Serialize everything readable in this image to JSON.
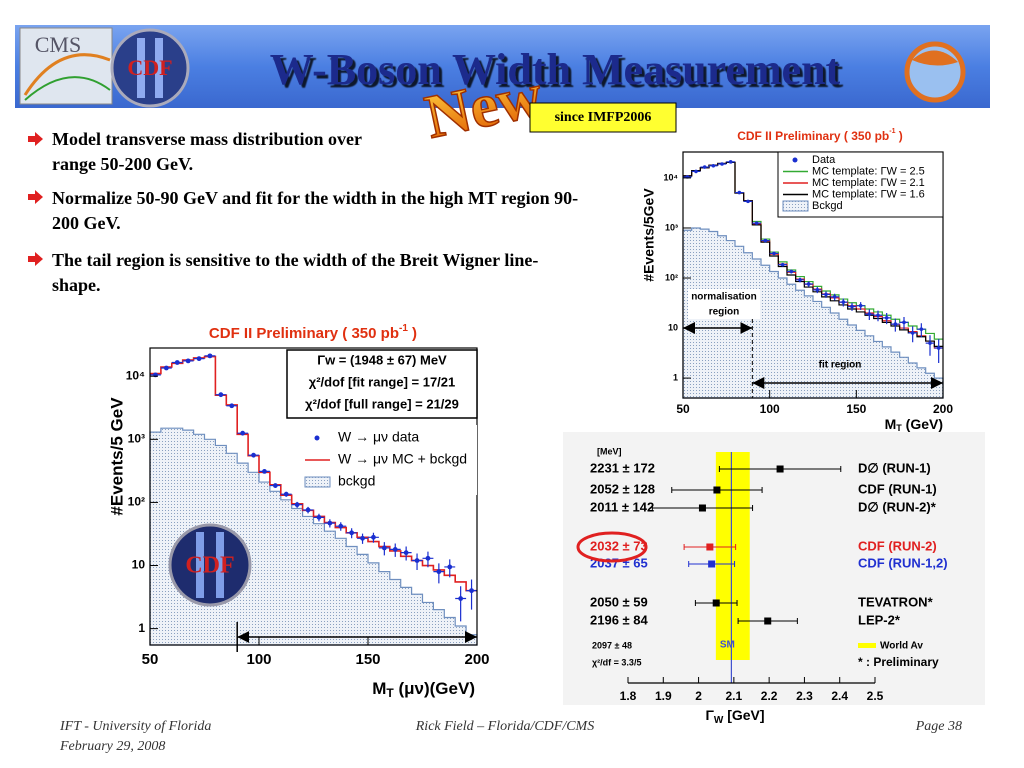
{
  "header": {
    "title": "W-Boson Width Measurement"
  },
  "logos": {
    "cms": "CMS",
    "cdf": "CDF"
  },
  "badge": {
    "new": "New",
    "since": "since IMFP2006"
  },
  "bullets": [
    "Model transverse mass distribution over range 50-200 GeV.",
    "Normalize 50-90 GeV and fit for the width in the high MT region 90-200 GeV.",
    "The tail region is sensitive to the width of the Breit Wigner line-shape."
  ],
  "plots": [
    {
      "title": [
        "CDF II Preliminary ( 350 pb",
        "-1",
        " )"
      ],
      "xlabel": [
        "M",
        "T",
        " (μν)(GeV)"
      ],
      "ylabel": "#Events/5 GeV",
      "xlim": [
        50,
        200
      ],
      "xticks": [
        50,
        100,
        150,
        200
      ],
      "ylim": [
        0.55,
        28000
      ],
      "log_y": true,
      "yticks": [
        1,
        10,
        {
          "value": 100,
          "label": "10²"
        },
        {
          "value": 1000,
          "label": "10³"
        },
        {
          "value": 10000,
          "label": "10⁴"
        }
      ],
      "bins": [
        50,
        55,
        60,
        65,
        70,
        75,
        80,
        85,
        90,
        95,
        100,
        105,
        110,
        115,
        120,
        125,
        130,
        135,
        140,
        145,
        150,
        155,
        160,
        165,
        170,
        175,
        180,
        185,
        190,
        195,
        200
      ],
      "info": [
        "Γw = (1948 ± 67) MeV",
        "χ²/dof [fit range] = 17/21",
        "χ²/dof [full range] = 21/29"
      ],
      "fit_range": [
        90,
        200
      ],
      "series": [
        {
          "name": "W → μν data",
          "kind": "data",
          "color": "#1a2fd0",
          "values": [
            10500,
            13500,
            16500,
            17500,
            19000,
            21000,
            5100,
            3400,
            1250,
            560,
            310,
            185,
            135,
            92,
            76,
            58,
            47,
            42,
            33,
            27,
            28,
            19,
            18,
            16,
            12,
            13,
            8,
            9.5,
            3,
            4
          ],
          "errors": [
            100,
            115,
            130,
            130,
            140,
            145,
            70,
            58,
            35,
            24,
            18,
            14,
            12,
            10,
            9,
            8,
            7,
            6.5,
            6,
            5,
            5,
            4.5,
            4.3,
            4,
            3.5,
            3.6,
            2.8,
            3,
            1.7,
            2
          ]
        },
        {
          "name": "W → μν MC + bckgd",
          "kind": "step",
          "color": "#e02020",
          "values": [
            11000,
            14000,
            16000,
            18000,
            19500,
            20500,
            5000,
            3500,
            1200,
            550,
            300,
            190,
            130,
            95,
            75,
            60,
            48,
            40,
            33,
            28,
            24,
            20,
            17,
            14,
            12,
            10,
            8.5,
            7,
            5.5,
            4
          ]
        },
        {
          "name": "bckgd",
          "kind": "fill",
          "color": "#6f8fbf",
          "values": [
            1300,
            1500,
            1500,
            1400,
            1200,
            1000,
            800,
            600,
            420,
            300,
            210,
            150,
            110,
            80,
            60,
            46,
            35,
            27,
            20,
            15,
            11,
            8,
            6,
            4.5,
            3.5,
            2.6,
            2,
            1.5,
            1.1,
            0.8
          ]
        }
      ]
    },
    {
      "title": [
        "CDF II Preliminary ( 350 pb",
        "-1",
        " )"
      ],
      "xlabel": [
        "M",
        "T",
        " (GeV)"
      ],
      "ylabel": "#Events/5GeV",
      "xlim": [
        50,
        200
      ],
      "xticks": [
        50,
        100,
        150,
        200
      ],
      "ylim": [
        0.4,
        33000
      ],
      "log_y": true,
      "yticks": [
        1,
        10,
        {
          "value": 100,
          "label": "10²"
        },
        {
          "value": 1000,
          "label": "10³"
        },
        {
          "value": 10000,
          "label": "10⁴"
        }
      ],
      "bins": [
        50,
        55,
        60,
        65,
        70,
        75,
        80,
        85,
        90,
        95,
        100,
        105,
        110,
        115,
        120,
        125,
        130,
        135,
        140,
        145,
        150,
        155,
        160,
        165,
        170,
        175,
        180,
        185,
        190,
        195,
        200
      ],
      "norm_range": [
        50,
        90
      ],
      "fit_range": [
        90,
        200
      ],
      "norm_label": [
        "normalisation",
        "region"
      ],
      "fit_label": "fit region",
      "series": [
        {
          "name": "Data",
          "kind": "data",
          "color": "#1a2fd0",
          "values": [
            10500,
            13500,
            16500,
            17500,
            19000,
            21000,
            5100,
            3400,
            1250,
            560,
            310,
            185,
            135,
            92,
            76,
            58,
            47,
            42,
            33,
            27,
            28,
            19,
            18,
            16,
            12,
            13,
            8,
            9.5,
            5,
            4
          ],
          "errors": [
            100,
            115,
            130,
            130,
            140,
            145,
            70,
            58,
            35,
            24,
            18,
            14,
            12,
            10,
            9,
            8,
            7,
            6.5,
            6,
            5,
            5,
            4.5,
            4.3,
            4,
            3.5,
            3.6,
            2.8,
            3,
            2.2,
            2
          ]
        },
        {
          "name": "MC template: ΓW = 2.5",
          "kind": "step",
          "color": "#33aa33",
          "values": [
            11000,
            14000,
            16000,
            18000,
            19500,
            20500,
            5000,
            3500,
            1350,
            600,
            330,
            210,
            145,
            107,
            85,
            68,
            55,
            46,
            38,
            32,
            28,
            24,
            21,
            18,
            15,
            13,
            11,
            9.5,
            7.8,
            6
          ]
        },
        {
          "name": "MC template: ΓW = 2.1",
          "kind": "step",
          "color": "#e02020",
          "values": [
            11000,
            14000,
            16000,
            18000,
            19500,
            20500,
            5000,
            3500,
            1200,
            550,
            300,
            190,
            130,
            95,
            75,
            60,
            48,
            40,
            33,
            28,
            24,
            20,
            17,
            14,
            12,
            10,
            8.5,
            7,
            5.5,
            4
          ]
        },
        {
          "name": "MC template: ΓW = 1.6",
          "kind": "step",
          "color": "#000000",
          "values": [
            11000,
            14000,
            16000,
            18000,
            19500,
            20500,
            5000,
            3500,
            1150,
            520,
            275,
            170,
            115,
            85,
            66,
            53,
            42,
            35,
            29,
            24,
            21,
            18,
            15.5,
            13,
            11,
            9.2,
            8,
            6.7,
            5.5,
            4.3
          ]
        },
        {
          "name": "Bckgd",
          "kind": "fill",
          "color": "#6f8fbf",
          "values": [
            900,
            1000,
            950,
            850,
            700,
            560,
            430,
            320,
            240,
            180,
            135,
            100,
            75,
            57,
            44,
            34,
            26,
            20,
            15,
            11.5,
            9,
            7,
            5.4,
            4.2,
            3.3,
            2.6,
            2,
            1.6,
            1.25,
            1
          ]
        }
      ]
    }
  ],
  "wa": {
    "header": "[MeV]",
    "xlim": [
      1.8,
      2.5
    ],
    "xticks": [
      1.8,
      1.9,
      2,
      2.1,
      2.2,
      2.3,
      2.4,
      2.5
    ],
    "xlabel": [
      "Γ",
      "W",
      " [GeV]"
    ],
    "entries": [
      {
        "label": "2231 ± 172",
        "name": "D∅ (RUN-1)",
        "value": 2.231,
        "error": 0.172,
        "color": "#000000"
      },
      {
        "label": "2052 ± 128",
        "name": "CDF (RUN-1)",
        "value": 2.052,
        "error": 0.128,
        "color": "#000000"
      },
      {
        "label": "2011 ± 142",
        "name": "D∅ (RUN-2)*",
        "value": 2.011,
        "error": 0.142,
        "color": "#000000"
      },
      {
        "label": "2032 ± 73",
        "name": "CDF (RUN-2)",
        "value": 2.032,
        "error": 0.073,
        "color": "#e02020"
      },
      {
        "label": "2037 ± 65",
        "name": "CDF (RUN-1,2)",
        "value": 2.037,
        "error": 0.065,
        "color": "#2030d0"
      },
      {
        "label": "2050 ± 59",
        "name": "TEVATRON*",
        "value": 2.05,
        "error": 0.059,
        "color": "#000000"
      },
      {
        "label": "2196 ± 84",
        "name": "LEP-2*",
        "value": 2.196,
        "error": 0.084,
        "color": "#000000"
      }
    ],
    "average": {
      "label": "2097 ± 48",
      "name": "World Av",
      "value": 2.097,
      "error": 0.048,
      "color": "#ffff00"
    },
    "chi2": "χ²/df = 3.3/5",
    "note": "* : Preliminary",
    "sm": {
      "label": "SM",
      "value": 2.093
    }
  },
  "footer": {
    "left": [
      "IFT - University of Florida",
      "February 29, 2008"
    ],
    "center": "Rick Field – Florida/CDF/CMS",
    "right": "Page 38"
  }
}
